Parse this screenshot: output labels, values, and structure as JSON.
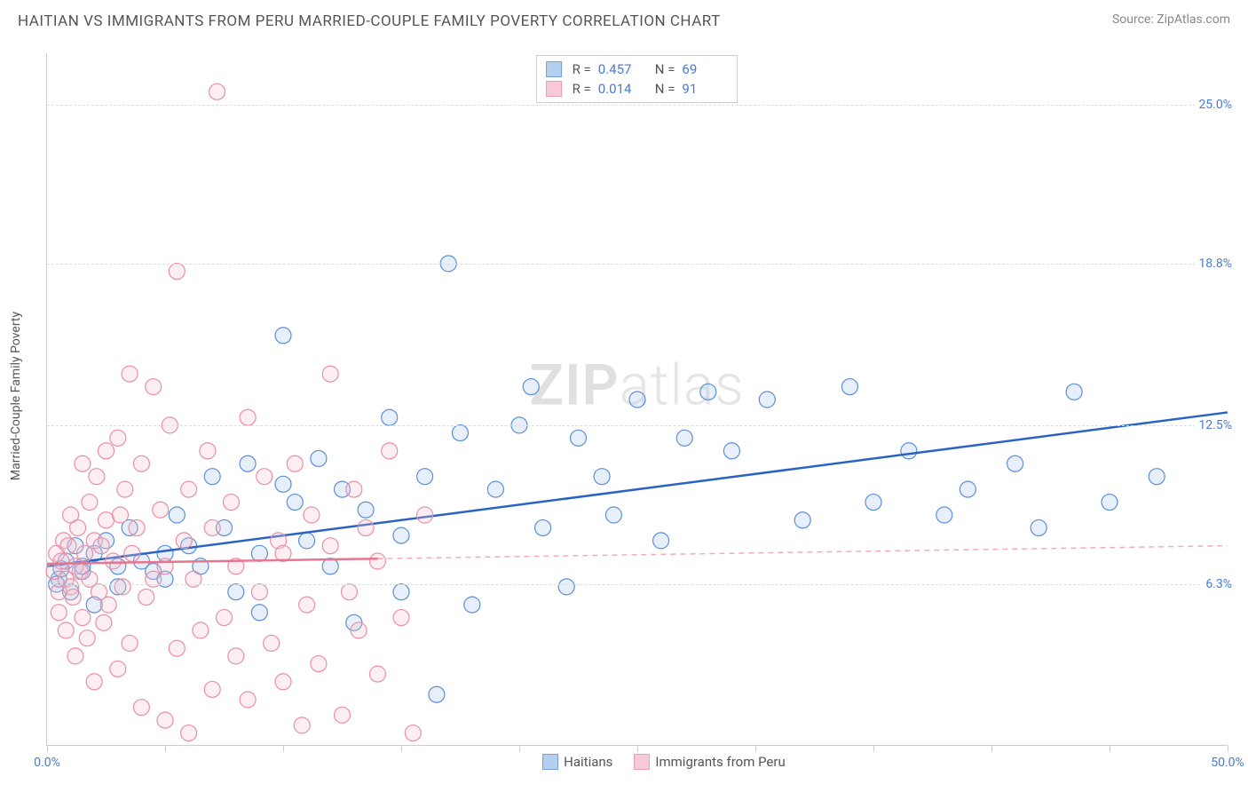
{
  "title": "HAITIAN VS IMMIGRANTS FROM PERU MARRIED-COUPLE FAMILY POVERTY CORRELATION CHART",
  "source": "Source: ZipAtlas.com",
  "watermark_a": "ZIP",
  "watermark_b": "atlas",
  "y_axis_label": "Married-Couple Family Poverty",
  "chart": {
    "type": "scatter-with-regression",
    "background_color": "#ffffff",
    "grid_color": "#dddddd",
    "axis_color": "#cccccc",
    "tick_label_color": "#4a7bd0",
    "xlim": [
      0,
      50
    ],
    "ylim": [
      0,
      27
    ],
    "y_gridlines": [
      6.3,
      12.5,
      18.8,
      25.0
    ],
    "y_tick_labels": [
      "6.3%",
      "12.5%",
      "18.8%",
      "25.0%"
    ],
    "x_ticks": [
      0,
      5,
      10,
      15,
      20,
      25,
      30,
      35,
      40,
      45,
      50
    ],
    "x_tick_labels": {
      "0": "0.0%",
      "50": "50.0%"
    },
    "marker_radius": 9,
    "marker_stroke_width": 1.2,
    "marker_fill_opacity": 0.28,
    "regression_line_width": 2.5,
    "series": [
      {
        "name": "Haitians",
        "color_stroke": "#5b8fd6",
        "color_fill": "#a9c7ec",
        "line_color": "#2b63c4",
        "regression": {
          "x1": 0,
          "y1": 7.0,
          "x2": 50,
          "y2": 13.0,
          "dash_after_x": null
        },
        "stats": {
          "R_label": "R =",
          "R": "0.457",
          "N_label": "N =",
          "N": "69"
        },
        "points": [
          [
            0.5,
            6.5
          ],
          [
            0.8,
            7.2
          ],
          [
            1.0,
            6.0
          ],
          [
            1.2,
            7.8
          ],
          [
            1.5,
            6.8
          ],
          [
            1.5,
            7.0
          ],
          [
            0.4,
            6.3
          ],
          [
            0.6,
            6.9
          ],
          [
            2.0,
            5.5
          ],
          [
            2.0,
            7.5
          ],
          [
            2.5,
            8.0
          ],
          [
            3.0,
            7.0
          ],
          [
            3.0,
            6.2
          ],
          [
            3.5,
            8.5
          ],
          [
            4.0,
            7.2
          ],
          [
            4.5,
            6.8
          ],
          [
            5.0,
            7.5
          ],
          [
            5.0,
            6.5
          ],
          [
            5.5,
            9.0
          ],
          [
            6.0,
            7.8
          ],
          [
            6.5,
            7.0
          ],
          [
            7.0,
            10.5
          ],
          [
            7.5,
            8.5
          ],
          [
            8.0,
            6.0
          ],
          [
            8.5,
            11.0
          ],
          [
            9.0,
            5.2
          ],
          [
            9.0,
            7.5
          ],
          [
            10.0,
            10.2
          ],
          [
            10.0,
            16.0
          ],
          [
            10.5,
            9.5
          ],
          [
            11.0,
            8.0
          ],
          [
            11.5,
            11.2
          ],
          [
            12.0,
            7.0
          ],
          [
            12.5,
            10.0
          ],
          [
            13.0,
            4.8
          ],
          [
            13.5,
            9.2
          ],
          [
            14.5,
            12.8
          ],
          [
            15.0,
            6.0
          ],
          [
            15.0,
            8.2
          ],
          [
            16.0,
            10.5
          ],
          [
            16.5,
            2.0
          ],
          [
            17.0,
            18.8
          ],
          [
            17.5,
            12.2
          ],
          [
            18.0,
            5.5
          ],
          [
            19.0,
            10.0
          ],
          [
            20.0,
            12.5
          ],
          [
            20.5,
            14.0
          ],
          [
            21.0,
            8.5
          ],
          [
            22.0,
            6.2
          ],
          [
            22.5,
            12.0
          ],
          [
            23.5,
            10.5
          ],
          [
            24.0,
            9.0
          ],
          [
            25.0,
            13.5
          ],
          [
            26.0,
            8.0
          ],
          [
            27.0,
            12.0
          ],
          [
            28.0,
            13.8
          ],
          [
            29.0,
            11.5
          ],
          [
            30.5,
            13.5
          ],
          [
            32.0,
            8.8
          ],
          [
            34.0,
            14.0
          ],
          [
            35.0,
            9.5
          ],
          [
            36.5,
            11.5
          ],
          [
            38.0,
            9.0
          ],
          [
            39.0,
            10.0
          ],
          [
            41.0,
            11.0
          ],
          [
            42.0,
            8.5
          ],
          [
            43.5,
            13.8
          ],
          [
            45.0,
            9.5
          ],
          [
            47.0,
            10.5
          ]
        ]
      },
      {
        "name": "Immigrants from Peru",
        "color_stroke": "#e88fa8",
        "color_fill": "#f6c1ce",
        "line_color": "#e97490",
        "regression": {
          "x1": 0,
          "y1": 7.1,
          "x2": 50,
          "y2": 7.8,
          "dash_after_x": 14
        },
        "stats": {
          "R_label": "R =",
          "R": "0.014",
          "N_label": "N =",
          "N": "91"
        },
        "points": [
          [
            0.3,
            6.8
          ],
          [
            0.4,
            7.5
          ],
          [
            0.5,
            6.0
          ],
          [
            0.5,
            5.2
          ],
          [
            0.6,
            7.2
          ],
          [
            0.7,
            8.0
          ],
          [
            0.8,
            6.5
          ],
          [
            0.8,
            4.5
          ],
          [
            0.9,
            7.8
          ],
          [
            1.0,
            6.2
          ],
          [
            1.0,
            9.0
          ],
          [
            1.1,
            5.8
          ],
          [
            1.2,
            7.0
          ],
          [
            1.2,
            3.5
          ],
          [
            1.3,
            8.5
          ],
          [
            1.4,
            6.8
          ],
          [
            1.5,
            11.0
          ],
          [
            1.5,
            5.0
          ],
          [
            1.6,
            7.5
          ],
          [
            1.7,
            4.2
          ],
          [
            1.8,
            9.5
          ],
          [
            1.8,
            6.5
          ],
          [
            2.0,
            8.0
          ],
          [
            2.0,
            2.5
          ],
          [
            2.1,
            10.5
          ],
          [
            2.2,
            6.0
          ],
          [
            2.3,
            7.8
          ],
          [
            2.4,
            4.8
          ],
          [
            2.5,
            11.5
          ],
          [
            2.5,
            8.8
          ],
          [
            2.6,
            5.5
          ],
          [
            2.8,
            7.2
          ],
          [
            3.0,
            12.0
          ],
          [
            3.0,
            3.0
          ],
          [
            3.1,
            9.0
          ],
          [
            3.2,
            6.2
          ],
          [
            3.3,
            10.0
          ],
          [
            3.5,
            14.5
          ],
          [
            3.5,
            4.0
          ],
          [
            3.6,
            7.5
          ],
          [
            3.8,
            8.5
          ],
          [
            4.0,
            11.0
          ],
          [
            4.0,
            1.5
          ],
          [
            4.2,
            5.8
          ],
          [
            4.5,
            14.0
          ],
          [
            4.5,
            6.5
          ],
          [
            4.8,
            9.2
          ],
          [
            5.0,
            1.0
          ],
          [
            5.0,
            7.0
          ],
          [
            5.2,
            12.5
          ],
          [
            5.5,
            3.8
          ],
          [
            5.5,
            18.5
          ],
          [
            5.8,
            8.0
          ],
          [
            6.0,
            0.5
          ],
          [
            6.0,
            10.0
          ],
          [
            6.2,
            6.5
          ],
          [
            6.5,
            4.5
          ],
          [
            6.8,
            11.5
          ],
          [
            7.0,
            2.2
          ],
          [
            7.0,
            8.5
          ],
          [
            7.2,
            25.5
          ],
          [
            7.5,
            5.0
          ],
          [
            7.8,
            9.5
          ],
          [
            8.0,
            3.5
          ],
          [
            8.0,
            7.0
          ],
          [
            8.5,
            12.8
          ],
          [
            8.5,
            1.8
          ],
          [
            9.0,
            6.0
          ],
          [
            9.2,
            10.5
          ],
          [
            9.5,
            4.0
          ],
          [
            9.8,
            8.0
          ],
          [
            10.0,
            2.5
          ],
          [
            10.0,
            7.5
          ],
          [
            10.5,
            11.0
          ],
          [
            10.8,
            0.8
          ],
          [
            11.0,
            5.5
          ],
          [
            11.2,
            9.0
          ],
          [
            11.5,
            3.2
          ],
          [
            12.0,
            7.8
          ],
          [
            12.0,
            14.5
          ],
          [
            12.5,
            1.2
          ],
          [
            12.8,
            6.0
          ],
          [
            13.0,
            10.0
          ],
          [
            13.2,
            4.5
          ],
          [
            13.5,
            8.5
          ],
          [
            14.0,
            2.8
          ],
          [
            14.0,
            7.2
          ],
          [
            14.5,
            11.5
          ],
          [
            15.0,
            5.0
          ],
          [
            15.5,
            0.5
          ],
          [
            16.0,
            9.0
          ]
        ]
      }
    ]
  },
  "legend_bottom": [
    {
      "label": "Haitians"
    },
    {
      "label": "Immigrants from Peru"
    }
  ]
}
